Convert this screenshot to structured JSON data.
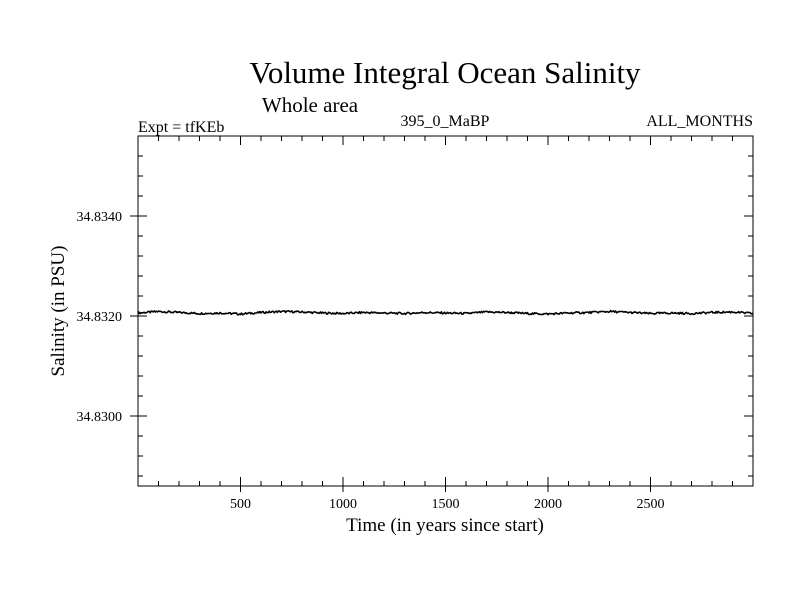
{
  "chart_data": {
    "type": "line",
    "title": "Volume Integral Ocean Salinity",
    "subtitle": "Whole area",
    "experiment": "Expt = tfKEb",
    "period": "395_0_MaBP",
    "months": "ALL_MONTHS",
    "xlabel": "Time (in years since start)",
    "ylabel": "Salinity (in PSU)",
    "xlim": [
      0,
      3000
    ],
    "ylim": [
      34.8286,
      34.8356
    ],
    "x_ticks": [
      {
        "value": 500,
        "label": "500"
      },
      {
        "value": 1000,
        "label": "1000"
      },
      {
        "value": 1500,
        "label": "1500"
      },
      {
        "value": 2000,
        "label": "2000"
      },
      {
        "value": 2500,
        "label": "2500"
      }
    ],
    "y_ticks": [
      {
        "value": 34.83,
        "label": "34.8300"
      },
      {
        "value": 34.832,
        "label": "34.8320"
      },
      {
        "value": 34.834,
        "label": "34.8340"
      }
    ],
    "grid": false,
    "series": [
      {
        "color": "#000000",
        "x": [
          0,
          100,
          200,
          300,
          400,
          500,
          600,
          700,
          800,
          900,
          1000,
          1100,
          1200,
          1300,
          1400,
          1500,
          1600,
          1700,
          1800,
          1900,
          2000,
          2100,
          2200,
          2300,
          2400,
          2500,
          2600,
          2700,
          2800,
          2900,
          3000
        ],
        "y": [
          34.83206,
          34.83209,
          34.83207,
          34.83205,
          34.83206,
          34.83204,
          34.83207,
          34.83209,
          34.83208,
          34.83206,
          34.83205,
          34.83207,
          34.83206,
          34.83205,
          34.83207,
          34.83206,
          34.83205,
          34.83208,
          34.83207,
          34.83205,
          34.83204,
          34.83206,
          34.83207,
          34.83209,
          34.83207,
          34.83205,
          34.83206,
          34.83205,
          34.83207,
          34.83208,
          34.83205
        ]
      }
    ]
  }
}
